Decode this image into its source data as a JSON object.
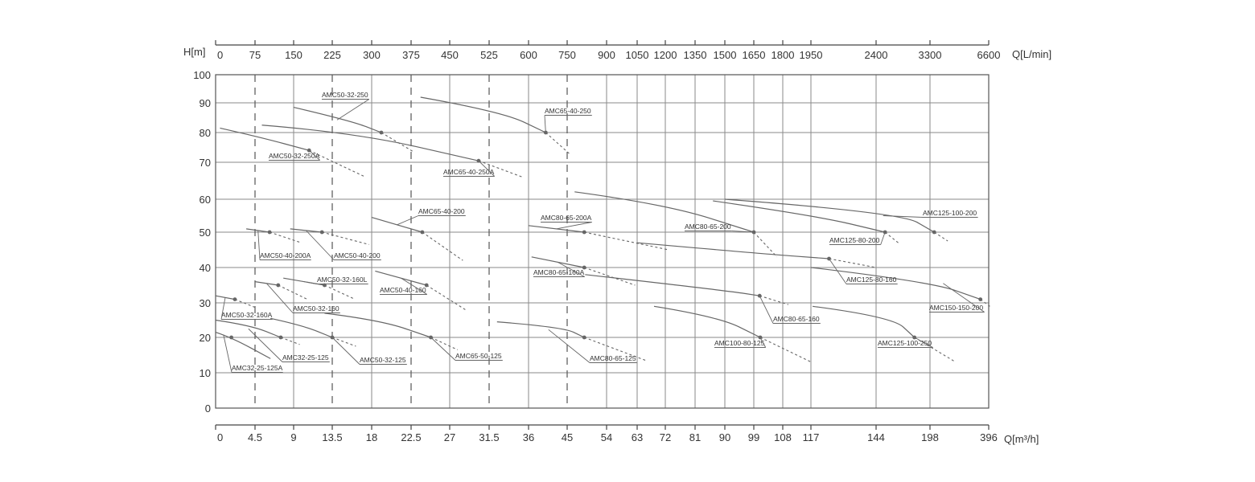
{
  "chart_data": {
    "type": "line",
    "title": "",
    "y_axis": {
      "label": "H[m]",
      "ticks": [
        0,
        10,
        20,
        30,
        40,
        50,
        60,
        70,
        80,
        90,
        100
      ],
      "ylim": [
        0,
        100
      ]
    },
    "x_axis_bottom": {
      "label": "Q[m³/h]",
      "ticks": [
        "0",
        "4.5",
        "9",
        "13.5",
        "18",
        "22.5",
        "27",
        "31.5",
        "36",
        "45",
        "54",
        "63",
        "72",
        "81",
        "90",
        "99",
        "108",
        "117",
        "144",
        "198",
        "396"
      ],
      "scale": "non-uniform"
    },
    "x_axis_top": {
      "label": "Q[L/min]",
      "ticks": [
        "0",
        "75",
        "150",
        "225",
        "300",
        "375",
        "450",
        "525",
        "600",
        "750",
        "900",
        "1050",
        "1200",
        "1350",
        "1500",
        "1650",
        "1800",
        "1950",
        "2400",
        "3300",
        "6600"
      ]
    },
    "dashed_gridlines_at_q": [
      4.5,
      13.5,
      22.5,
      31.5,
      45
    ],
    "series": [
      {
        "name": "AMC50-32-250",
        "points": [
          [
            9,
            88.5
          ],
          [
            15.6,
            84
          ],
          [
            19.1,
            80
          ]
        ],
        "dashed_points": [
          [
            19.1,
            80
          ],
          [
            22.8,
            73.5
          ]
        ],
        "operating_point": [
          19.1,
          80
        ]
      },
      {
        "name": "AMC50-32-250A",
        "points": [
          [
            0.5,
            81.5
          ],
          [
            5,
            78.5
          ],
          [
            10.8,
            74
          ]
        ],
        "dashed_points": [
          [
            10.8,
            74
          ],
          [
            17.3,
            66
          ]
        ],
        "operating_point": [
          10.8,
          74
        ]
      },
      {
        "name": "AMC65-40-250",
        "points": [
          [
            23.6,
            92
          ],
          [
            33,
            87
          ],
          [
            40,
            80
          ]
        ],
        "dashed_points": [
          [
            40,
            80
          ],
          [
            45.8,
            72.5
          ]
        ],
        "operating_point": [
          40,
          80
        ]
      },
      {
        "name": "AMC65-40-250A",
        "points": [
          [
            5.3,
            82.5
          ],
          [
            16,
            80
          ],
          [
            30.3,
            70.5
          ]
        ],
        "dashed_points": [
          [
            30.3,
            70.5
          ],
          [
            35.3,
            66
          ]
        ],
        "operating_point": [
          30.3,
          70.5
        ]
      },
      {
        "name": "AMC50-40-200A",
        "points": [
          [
            3.5,
            51
          ],
          [
            6.2,
            50
          ]
        ],
        "dashed_points": [
          [
            6.2,
            50
          ],
          [
            9.9,
            47
          ]
        ],
        "operating_point": [
          6.2,
          50
        ]
      },
      {
        "name": "AMC50-40-200",
        "points": [
          [
            8.6,
            51
          ],
          [
            12.3,
            50
          ]
        ],
        "dashed_points": [
          [
            12.3,
            50
          ],
          [
            17.7,
            46.5
          ]
        ],
        "operating_point": [
          12.3,
          50
        ]
      },
      {
        "name": "AMC65-40-200",
        "points": [
          [
            18,
            54.5
          ],
          [
            23.8,
            50
          ]
        ],
        "dashed_points": [
          [
            23.8,
            50
          ],
          [
            28.5,
            42
          ]
        ],
        "operating_point": [
          23.8,
          50
        ]
      },
      {
        "name": "AMC80-65-200A",
        "points": [
          [
            36,
            52
          ],
          [
            48.9,
            50
          ]
        ],
        "dashed_points": [
          [
            48.9,
            50
          ],
          [
            73,
            45
          ]
        ],
        "operating_point": [
          48.9,
          50
        ]
      },
      {
        "name": "AMC80-65-200",
        "points": [
          [
            46.7,
            62
          ],
          [
            72,
            58.5
          ],
          [
            99,
            50
          ]
        ],
        "dashed_points": [
          [
            99,
            50
          ],
          [
            106.2,
            43
          ]
        ],
        "operating_point": [
          99,
          50
        ]
      },
      {
        "name": "AMC125-80-200",
        "points": [
          [
            86.4,
            59.5
          ],
          [
            119,
            55
          ],
          [
            153,
            50
          ]
        ],
        "dashed_points": [
          [
            153,
            50
          ],
          [
            166.2,
            47
          ]
        ],
        "operating_point": [
          153,
          50
        ]
      },
      {
        "name": "AMC125-100-200",
        "points": [
          [
            90,
            60
          ],
          [
            168,
            56
          ],
          [
            212.2,
            50
          ]
        ],
        "dashed_points": [
          [
            212.2,
            50
          ],
          [
            258,
            47.5
          ]
        ],
        "operating_point": [
          212.2,
          50
        ]
      },
      {
        "name": "AMC50-32-160L",
        "points": [
          [
            7.8,
            37
          ],
          [
            12.6,
            35
          ]
        ],
        "dashed_points": [
          [
            12.6,
            35
          ],
          [
            16.1,
            31
          ]
        ],
        "operating_point": [
          12.6,
          35
        ]
      },
      {
        "name": "AMC50-32-160",
        "points": [
          [
            4.5,
            36
          ],
          [
            7.2,
            35
          ]
        ],
        "dashed_points": [
          [
            7.2,
            35
          ],
          [
            10.6,
            31
          ]
        ],
        "operating_point": [
          7.2,
          35
        ]
      },
      {
        "name": "AMC50-32-160A",
        "points": [
          [
            0,
            32
          ],
          [
            2.2,
            31
          ]
        ],
        "dashed_points": [
          [
            2.2,
            31
          ],
          [
            4.7,
            28.5
          ]
        ],
        "operating_point": [
          2.2,
          31
        ]
      },
      {
        "name": "AMC50-40-160",
        "points": [
          [
            18.4,
            39
          ],
          [
            24.3,
            35
          ]
        ],
        "dashed_points": [
          [
            24.3,
            35
          ],
          [
            28.8,
            28
          ]
        ],
        "operating_point": [
          24.3,
          35
        ]
      },
      {
        "name": "AMC80-65-160A",
        "points": [
          [
            36.7,
            43
          ],
          [
            48.9,
            40
          ]
        ],
        "dashed_points": [
          [
            48.9,
            40
          ],
          [
            62.4,
            35
          ]
        ],
        "operating_point": [
          48.9,
          40
        ]
      },
      {
        "name": "AMC125-80-160",
        "points": [
          [
            63,
            47
          ],
          [
            100,
            44
          ],
          [
            124.5,
            42.5
          ]
        ],
        "dashed_points": [
          [
            124.5,
            42.5
          ],
          [
            144,
            40
          ]
        ],
        "operating_point": [
          124.5,
          42.5
        ]
      },
      {
        "name": "AMC80-65-160",
        "points": [
          [
            49.1,
            38
          ],
          [
            90,
            33.5
          ],
          [
            100.8,
            32
          ]
        ],
        "dashed_points": [
          [
            100.8,
            32
          ],
          [
            109.8,
            29.5
          ]
        ],
        "operating_point": [
          100.8,
          32
        ]
      },
      {
        "name": "AMC150-150-200",
        "points": [
          [
            117,
            40
          ],
          [
            198,
            36
          ],
          [
            368,
            31
          ]
        ],
        "dashed_points": [
          [
            368,
            31
          ],
          [
            400,
            29
          ]
        ],
        "operating_point": [
          368,
          31
        ]
      },
      {
        "name": "AMC32-25-125A",
        "points": [
          [
            0,
            21.5
          ],
          [
            1.8,
            20
          ],
          [
            6.3,
            14
          ]
        ],
        "dashed_points": [],
        "operating_point": [
          1.8,
          20
        ]
      },
      {
        "name": "AMC32-25-125",
        "points": [
          [
            0,
            25
          ],
          [
            4,
            23.5
          ],
          [
            7.5,
            20
          ]
        ],
        "dashed_points": [
          [
            7.5,
            20
          ],
          [
            9.7,
            18
          ]
        ],
        "operating_point": [
          7.5,
          20
        ]
      },
      {
        "name": "AMC50-32-125",
        "points": [
          [
            6.3,
            25.5
          ],
          [
            10,
            23.5
          ],
          [
            13.5,
            20
          ]
        ],
        "dashed_points": [
          [
            13.5,
            20
          ],
          [
            16.2,
            17.5
          ]
        ],
        "operating_point": [
          13.5,
          20
        ]
      },
      {
        "name": "AMC65-50-125",
        "points": [
          [
            12.6,
            27
          ],
          [
            19,
            25
          ],
          [
            24.8,
            20
          ]
        ],
        "dashed_points": [
          [
            24.8,
            20
          ],
          [
            27.9,
            16.5
          ]
        ],
        "operating_point": [
          24.8,
          20
        ]
      },
      {
        "name": "AMC80-65-125",
        "points": [
          [
            32.4,
            24.5
          ],
          [
            44,
            23
          ],
          [
            48.9,
            20
          ]
        ],
        "dashed_points": [
          [
            48.9,
            20
          ],
          [
            65.7,
            13.5
          ]
        ],
        "operating_point": [
          48.9,
          20
        ]
      },
      {
        "name": "AMC100-80-125",
        "points": [
          [
            68.4,
            29
          ],
          [
            88,
            26
          ],
          [
            101,
            20
          ]
        ],
        "dashed_points": [
          [
            101,
            20
          ],
          [
            117.2,
            13
          ]
        ],
        "operating_point": [
          101,
          20
        ]
      },
      {
        "name": "AMC125-100-250",
        "points": [
          [
            117.7,
            29
          ],
          [
            160,
            26
          ],
          [
            182.4,
            20
          ]
        ],
        "dashed_points": [
          [
            182.4,
            20
          ],
          [
            285,
            13
          ]
        ],
        "operating_point": [
          182.4,
          20
        ]
      }
    ]
  }
}
